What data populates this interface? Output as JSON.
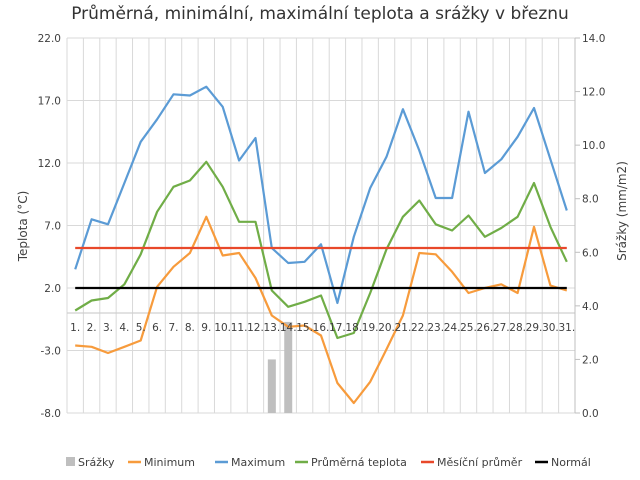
{
  "chart_data": {
    "type": "line",
    "title": "Průměrná, minimální, maximální teplota a srážky v březnu",
    "xlabel": "",
    "ylabel": "Teplota (°C)",
    "y2label": "Srážky (mm/m2)",
    "ylim": [
      -8,
      22
    ],
    "y2lim": [
      0,
      14
    ],
    "yticks": [
      "22.0",
      "17.0",
      "12.0",
      "7.0",
      "2.0",
      "-3.0",
      "-8.0"
    ],
    "ytick_values": [
      22,
      17,
      12,
      7,
      2,
      -3,
      -8
    ],
    "y2ticks": [
      "14.0",
      "12.0",
      "10.0",
      "8.0",
      "6.0",
      "4.0",
      "2.0",
      "0.0"
    ],
    "y2tick_values": [
      14,
      12,
      10,
      8,
      6,
      4,
      2,
      0
    ],
    "grid": true,
    "legend_position": "bottom",
    "categories": [
      "1.",
      "2.",
      "3.",
      "4.",
      "5.",
      "6.",
      "7.",
      "8.",
      "9.",
      "10.",
      "11.",
      "12.",
      "13.",
      "14.",
      "15.",
      "16.",
      "17.",
      "18.",
      "19.",
      "20.",
      "21.",
      "22.",
      "23.",
      "24.",
      "25.",
      "26.",
      "27.",
      "28.",
      "29.",
      "30.",
      "31."
    ],
    "series": [
      {
        "name": "Srážky",
        "type": "bar",
        "axis": "right",
        "color": "#BFBFBF",
        "values": [
          0,
          0,
          0,
          0,
          0,
          0,
          0,
          0,
          0,
          0,
          0,
          0,
          2.0,
          3.4,
          0,
          0,
          0,
          0,
          0,
          0,
          0,
          0,
          0,
          0,
          0,
          0,
          0,
          0,
          0,
          0,
          0
        ]
      },
      {
        "name": "Minimum",
        "type": "line",
        "axis": "left",
        "color": "#F79B3C",
        "values": [
          -2.6,
          -2.7,
          -3.2,
          -2.7,
          -2.2,
          2.1,
          3.7,
          4.8,
          7.7,
          4.6,
          4.8,
          2.8,
          -0.2,
          -1.1,
          -1.0,
          -1.8,
          -5.6,
          -7.2,
          -5.5,
          -2.9,
          -0.2,
          4.8,
          4.7,
          3.3,
          1.6,
          2.0,
          2.3,
          1.6,
          6.9,
          2.2,
          1.8
        ]
      },
      {
        "name": "Maximum",
        "type": "line",
        "axis": "left",
        "color": "#5B9BD5",
        "values": [
          3.5,
          7.5,
          7.1,
          10.4,
          13.7,
          15.5,
          17.5,
          17.4,
          18.1,
          16.5,
          12.2,
          14.0,
          5.2,
          4.0,
          4.1,
          5.5,
          0.8,
          6.1,
          10.0,
          12.5,
          16.3,
          13.0,
          9.2,
          9.2,
          16.1,
          11.2,
          12.3,
          14.1,
          16.4,
          12.3,
          8.2
        ]
      },
      {
        "name": "Průměrná teplota",
        "type": "line",
        "axis": "left",
        "color": "#70AD47",
        "values": [
          0.2,
          1.0,
          1.2,
          2.3,
          4.7,
          8.1,
          10.1,
          10.6,
          12.1,
          10.1,
          7.3,
          7.3,
          1.8,
          0.5,
          0.9,
          1.4,
          -2.0,
          -1.6,
          1.6,
          5.1,
          7.7,
          9.0,
          7.1,
          6.6,
          7.8,
          6.1,
          6.8,
          7.7,
          10.4,
          6.9,
          4.1
        ]
      },
      {
        "name": "Měsíční průměr",
        "type": "line",
        "axis": "left",
        "color": "#E8482A",
        "values": [
          5.2,
          5.2,
          5.2,
          5.2,
          5.2,
          5.2,
          5.2,
          5.2,
          5.2,
          5.2,
          5.2,
          5.2,
          5.2,
          5.2,
          5.2,
          5.2,
          5.2,
          5.2,
          5.2,
          5.2,
          5.2,
          5.2,
          5.2,
          5.2,
          5.2,
          5.2,
          5.2,
          5.2,
          5.2,
          5.2,
          5.2
        ]
      },
      {
        "name": "Normál",
        "type": "line",
        "axis": "left",
        "color": "#000000",
        "values": [
          2.0,
          2.0,
          2.0,
          2.0,
          2.0,
          2.0,
          2.0,
          2.0,
          2.0,
          2.0,
          2.0,
          2.0,
          2.0,
          2.0,
          2.0,
          2.0,
          2.0,
          2.0,
          2.0,
          2.0,
          2.0,
          2.0,
          2.0,
          2.0,
          2.0,
          2.0,
          2.0,
          2.0,
          2.0,
          2.0,
          2.0
        ]
      }
    ]
  }
}
